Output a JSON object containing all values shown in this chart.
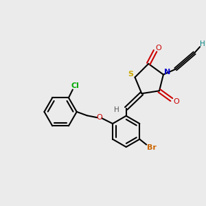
{
  "bg_color": "#ebebeb",
  "figsize": [
    3.0,
    3.0
  ],
  "dpi": 100,
  "atoms": {
    "S": {
      "color": "#ccaa00"
    },
    "N": {
      "color": "#0000cc"
    },
    "O": {
      "color": "#cc0000"
    },
    "Br": {
      "color": "#cc6600"
    },
    "Cl": {
      "color": "#00aa00"
    },
    "H": {
      "color": "#008080"
    },
    "C": {
      "color": "#000000"
    }
  }
}
